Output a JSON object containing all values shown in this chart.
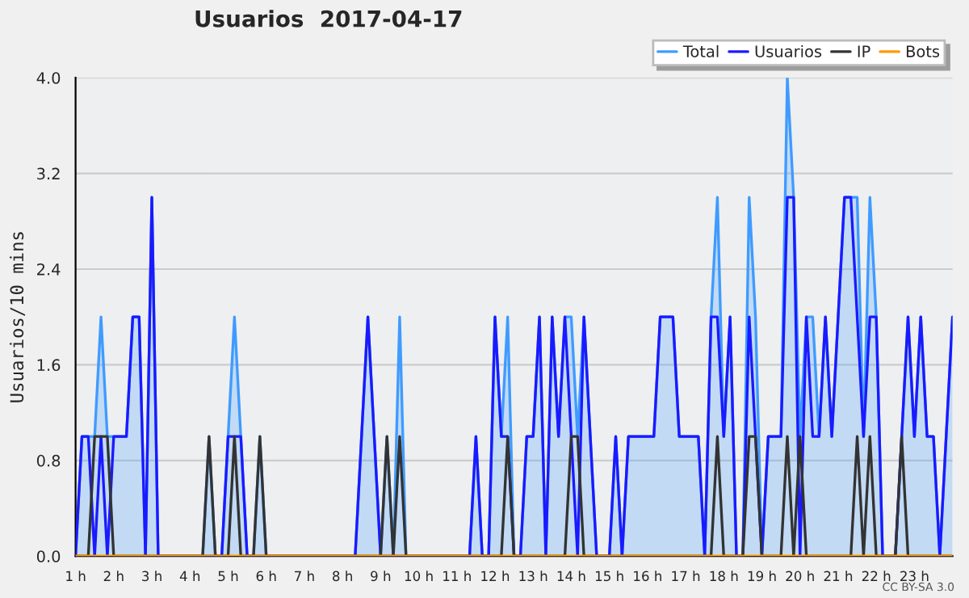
{
  "chart_data": {
    "type": "line",
    "title": "Usuarios  2017-04-17",
    "ylabel": "Usuarios/10 mins",
    "x": [
      1,
      1.1667,
      1.3333,
      1.5,
      1.6667,
      1.8333,
      2,
      2.1667,
      2.3333,
      2.5,
      2.6667,
      2.8333,
      3,
      3.1667,
      3.3333,
      3.5,
      3.6667,
      3.8333,
      4,
      4.1667,
      4.3333,
      4.5,
      4.6667,
      4.8333,
      5,
      5.1667,
      5.3333,
      5.5,
      5.6667,
      5.8333,
      6,
      6.1667,
      6.3333,
      6.5,
      6.6667,
      6.8333,
      7,
      7.1667,
      7.3333,
      7.5,
      7.6667,
      7.8333,
      8,
      8.1667,
      8.3333,
      8.5,
      8.6667,
      8.8333,
      9,
      9.1667,
      9.3333,
      9.5,
      9.6667,
      9.8333,
      10,
      10.1667,
      10.3333,
      10.5,
      10.6667,
      10.8333,
      11,
      11.1667,
      11.3333,
      11.5,
      11.6667,
      11.8333,
      12,
      12.1667,
      12.3333,
      12.5,
      12.6667,
      12.8333,
      13,
      13.1667,
      13.3333,
      13.5,
      13.6667,
      13.8333,
      14,
      14.1667,
      14.3333,
      14.5,
      14.6667,
      14.8333,
      15,
      15.1667,
      15.3333,
      15.5,
      15.6667,
      15.8333,
      16,
      16.1667,
      16.3333,
      16.5,
      16.6667,
      16.8333,
      17,
      17.1667,
      17.3333,
      17.5,
      17.6667,
      17.8333,
      18,
      18.1667,
      18.3333,
      18.5,
      18.6667,
      18.8333,
      19,
      19.1667,
      19.3333,
      19.5,
      19.6667,
      19.8333,
      20,
      20.1667,
      20.3333,
      20.5,
      20.6667,
      20.8333,
      21,
      21.1667,
      21.3333,
      21.5,
      21.6667,
      21.8333,
      22,
      22.1667,
      22.3333,
      22.5,
      22.6667,
      22.8333,
      23,
      23.1667,
      23.3333,
      23.5,
      23.6667,
      23.8333,
      24
    ],
    "series": [
      {
        "name": "Total",
        "type": "area",
        "color": "#3f9bff",
        "values": [
          0,
          1,
          1,
          1,
          2,
          1,
          1,
          1,
          1,
          2,
          2,
          0,
          3,
          0,
          0,
          0,
          0,
          0,
          0,
          0,
          0,
          1,
          0,
          0,
          1,
          2,
          1,
          0,
          0,
          1,
          0,
          0,
          0,
          0,
          0,
          0,
          0,
          0,
          0,
          0,
          0,
          0,
          0,
          0,
          0,
          1,
          2,
          1,
          0,
          1,
          0,
          2,
          0,
          0,
          0,
          0,
          0,
          0,
          0,
          0,
          0,
          0,
          0,
          1,
          0,
          0,
          2,
          1,
          2,
          0,
          0,
          1,
          1,
          2,
          0,
          2,
          1,
          2,
          2,
          1,
          2,
          1,
          0,
          0,
          0,
          1,
          0,
          1,
          1,
          1,
          1,
          1,
          2,
          2,
          2,
          1,
          1,
          1,
          1,
          0,
          2,
          3,
          1,
          2,
          0,
          0,
          3,
          2,
          0,
          1,
          1,
          1,
          4,
          3,
          1,
          2,
          2,
          1,
          2,
          1,
          2,
          3,
          3,
          3,
          1,
          3,
          2,
          0,
          0,
          0,
          1,
          2,
          1,
          2,
          1,
          1,
          0,
          1,
          2
        ]
      },
      {
        "name": "Usuarios",
        "color": "#1a1aff",
        "values": [
          0,
          1,
          1,
          0,
          1,
          0,
          1,
          1,
          1,
          2,
          2,
          0,
          3,
          0,
          0,
          0,
          0,
          0,
          0,
          0,
          0,
          0,
          0,
          0,
          1,
          1,
          1,
          0,
          0,
          0,
          0,
          0,
          0,
          0,
          0,
          0,
          0,
          0,
          0,
          0,
          0,
          0,
          0,
          0,
          0,
          1,
          2,
          1,
          0,
          0,
          0,
          0,
          0,
          0,
          0,
          0,
          0,
          0,
          0,
          0,
          0,
          0,
          0,
          1,
          0,
          0,
          2,
          1,
          1,
          0,
          0,
          1,
          1,
          2,
          0,
          2,
          1,
          2,
          1,
          0,
          2,
          1,
          0,
          0,
          0,
          1,
          0,
          1,
          1,
          1,
          1,
          1,
          2,
          2,
          2,
          1,
          1,
          1,
          1,
          0,
          2,
          2,
          1,
          2,
          0,
          0,
          2,
          1,
          0,
          1,
          1,
          1,
          3,
          3,
          0,
          2,
          1,
          1,
          2,
          1,
          2,
          3,
          3,
          2,
          1,
          2,
          2,
          0,
          0,
          0,
          1,
          2,
          1,
          2,
          1,
          1,
          0,
          1,
          2
        ]
      },
      {
        "name": "IP",
        "color": "#333333",
        "values": [
          0,
          0,
          0,
          1,
          1,
          1,
          0,
          0,
          0,
          0,
          0,
          0,
          0,
          0,
          0,
          0,
          0,
          0,
          0,
          0,
          0,
          1,
          0,
          0,
          0,
          1,
          0,
          0,
          0,
          1,
          0,
          0,
          0,
          0,
          0,
          0,
          0,
          0,
          0,
          0,
          0,
          0,
          0,
          0,
          0,
          0,
          0,
          0,
          0,
          1,
          0,
          1,
          0,
          0,
          0,
          0,
          0,
          0,
          0,
          0,
          0,
          0,
          0,
          0,
          0,
          0,
          0,
          0,
          1,
          0,
          0,
          0,
          0,
          0,
          0,
          0,
          0,
          0,
          1,
          1,
          0,
          0,
          0,
          0,
          0,
          0,
          0,
          0,
          0,
          0,
          0,
          0,
          0,
          0,
          0,
          0,
          0,
          0,
          0,
          0,
          0,
          1,
          0,
          0,
          0,
          0,
          1,
          1,
          0,
          0,
          0,
          0,
          1,
          0,
          1,
          0,
          0,
          0,
          0,
          0,
          0,
          0,
          0,
          1,
          0,
          1,
          0,
          0,
          0,
          0,
          1,
          0,
          0,
          0,
          0,
          0,
          0,
          0,
          0
        ]
      },
      {
        "name": "Bots",
        "color": "#ff9900",
        "values": [
          0,
          0,
          0,
          0,
          0,
          0,
          0,
          0,
          0,
          0,
          0,
          0,
          0,
          0,
          0,
          0,
          0,
          0,
          0,
          0,
          0,
          0,
          0,
          0,
          0,
          0,
          0,
          0,
          0,
          0,
          0,
          0,
          0,
          0,
          0,
          0,
          0,
          0,
          0,
          0,
          0,
          0,
          0,
          0,
          0,
          0,
          0,
          0,
          0,
          0,
          0,
          0,
          0,
          0,
          0,
          0,
          0,
          0,
          0,
          0,
          0,
          0,
          0,
          0,
          0,
          0,
          0,
          0,
          0,
          0,
          0,
          0,
          0,
          0,
          0,
          0,
          0,
          0,
          0,
          0,
          0,
          0,
          0,
          0,
          0,
          0,
          0,
          0,
          0,
          0,
          0,
          0,
          0,
          0,
          0,
          0,
          0,
          0,
          0,
          0,
          0,
          0,
          0,
          0,
          0,
          0,
          0,
          0,
          0,
          0,
          0,
          0,
          0,
          0,
          0,
          0,
          0,
          0,
          0,
          0,
          0,
          0,
          0,
          0,
          0,
          0,
          0,
          0,
          0,
          0,
          0,
          0,
          0,
          0,
          0,
          0,
          0,
          0,
          0
        ]
      }
    ],
    "xlim": [
      1,
      24
    ],
    "xticks": [
      {
        "value": 1,
        "label": "1 h"
      },
      {
        "value": 2,
        "label": "2 h"
      },
      {
        "value": 3,
        "label": "3 h"
      },
      {
        "value": 4,
        "label": "4 h"
      },
      {
        "value": 5,
        "label": "5 h"
      },
      {
        "value": 6,
        "label": "6 h"
      },
      {
        "value": 7,
        "label": "7 h"
      },
      {
        "value": 8,
        "label": "8 h"
      },
      {
        "value": 9,
        "label": "9 h"
      },
      {
        "value": 10,
        "label": "10 h"
      },
      {
        "value": 11,
        "label": "11 h"
      },
      {
        "value": 12,
        "label": "12 h"
      },
      {
        "value": 13,
        "label": "13 h"
      },
      {
        "value": 14,
        "label": "14 h"
      },
      {
        "value": 15,
        "label": "15 h"
      },
      {
        "value": 16,
        "label": "16 h"
      },
      {
        "value": 17,
        "label": "17 h"
      },
      {
        "value": 18,
        "label": "18 h"
      },
      {
        "value": 19,
        "label": "19 h"
      },
      {
        "value": 20,
        "label": "20 h"
      },
      {
        "value": 21,
        "label": "21 h"
      },
      {
        "value": 22,
        "label": "22 h"
      },
      {
        "value": 23,
        "label": "23 h"
      }
    ],
    "ylim": [
      0,
      4
    ],
    "yticks": [
      {
        "value": 0,
        "label": "0.0"
      },
      {
        "value": 0.8,
        "label": "0.8"
      },
      {
        "value": 1.6,
        "label": "1.6"
      },
      {
        "value": 2.4,
        "label": "2.4"
      },
      {
        "value": 3.2,
        "label": "3.2"
      },
      {
        "value": 4,
        "label": "4.0"
      }
    ],
    "grid": "y",
    "legend": "top right",
    "annotations": [
      "CC BY-SA 3.0"
    ]
  }
}
